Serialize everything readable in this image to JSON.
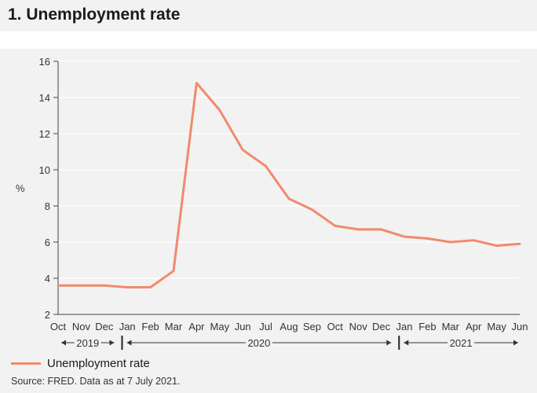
{
  "header": {
    "title": "1. Unemployment rate"
  },
  "chart_data": {
    "type": "line",
    "title": "1. Unemployment rate",
    "xlabel": "",
    "ylabel": "%",
    "ylim": [
      2,
      16
    ],
    "yticks": [
      "2",
      "4",
      "6",
      "8",
      "10",
      "12",
      "14",
      "16"
    ],
    "grid": true,
    "categories": [
      "Oct",
      "Nov",
      "Dec",
      "Jan",
      "Feb",
      "Mar",
      "Apr",
      "May",
      "Jun",
      "Jul",
      "Aug",
      "Sep",
      "Oct",
      "Nov",
      "Dec",
      "Jan",
      "Feb",
      "Mar",
      "Apr",
      "May",
      "Jun"
    ],
    "series": [
      {
        "name": "Unemployment rate",
        "color": "#f08a6d",
        "values": [
          3.6,
          3.6,
          3.6,
          3.5,
          3.5,
          4.4,
          14.8,
          13.3,
          11.1,
          10.2,
          8.4,
          7.8,
          6.9,
          6.7,
          6.7,
          6.3,
          6.2,
          6.0,
          6.1,
          5.8,
          5.9
        ]
      }
    ],
    "years": [
      {
        "label": "2019",
        "from": 0,
        "to": 2
      },
      {
        "label": "2020",
        "from": 3,
        "to": 14
      },
      {
        "label": "2021",
        "from": 15,
        "to": 20
      }
    ],
    "legend_position": "bottom-left"
  },
  "legend": {
    "label": "Unemployment rate"
  },
  "footer": {
    "source": "Source: FRED. Data as at 7 July 2021."
  }
}
